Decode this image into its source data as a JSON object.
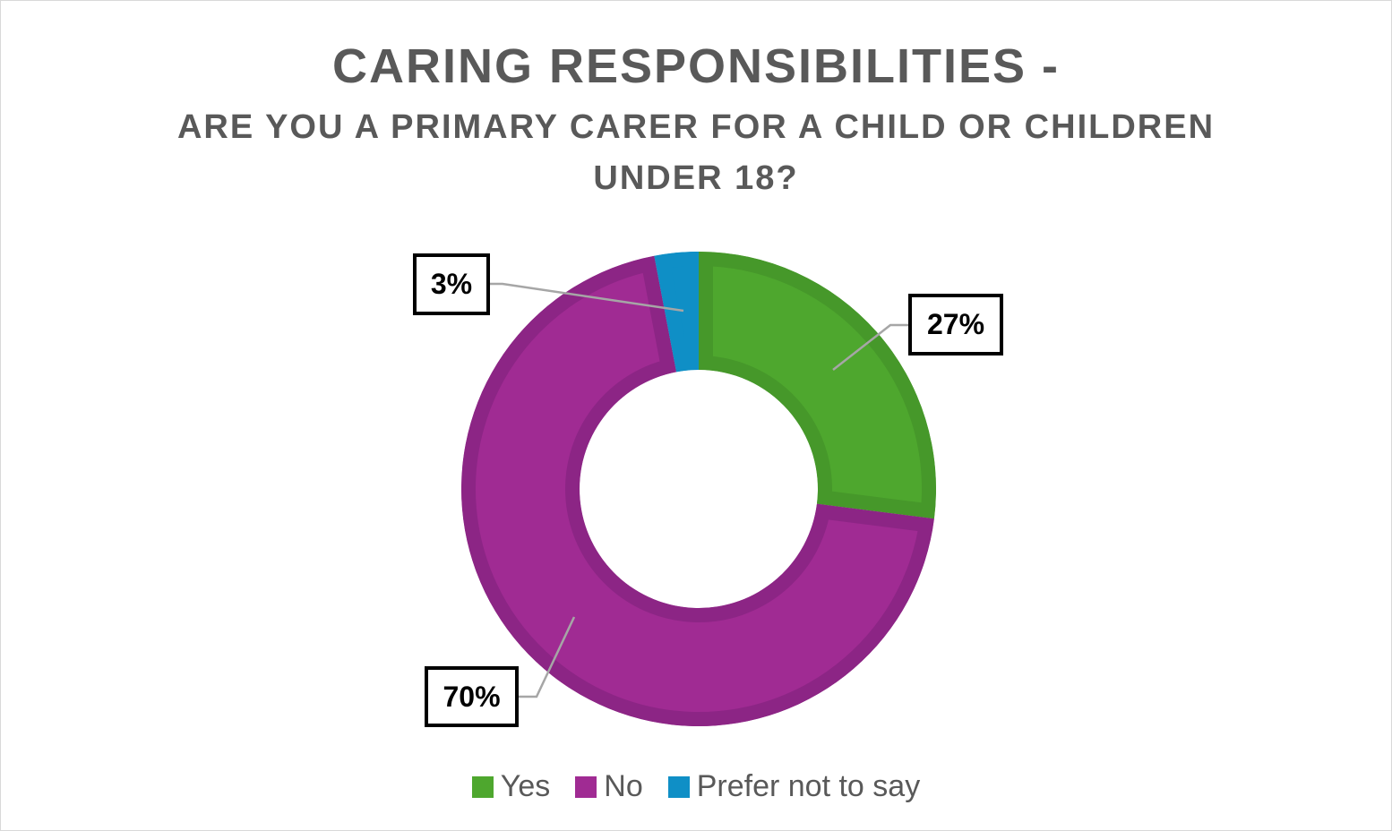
{
  "chart_data": {
    "type": "pie",
    "variant": "doughnut",
    "title": "CARING RESPONSIBILITIES -",
    "subtitle_line1": "ARE YOU A PRIMARY CARER FOR A CHILD OR CHILDREN",
    "subtitle_line2": "UNDER 18?",
    "categories": [
      "Yes",
      "No",
      "Prefer not to say"
    ],
    "values": [
      27,
      70,
      3
    ],
    "data_labels": [
      "27%",
      "70%",
      "3%"
    ],
    "colors": [
      "#4EA72E",
      "#A02B93",
      "#0F8FC6"
    ],
    "border_colors": [
      "#46982A",
      "#8C2585",
      "#0F8FC6"
    ],
    "legend_position": "bottom"
  }
}
